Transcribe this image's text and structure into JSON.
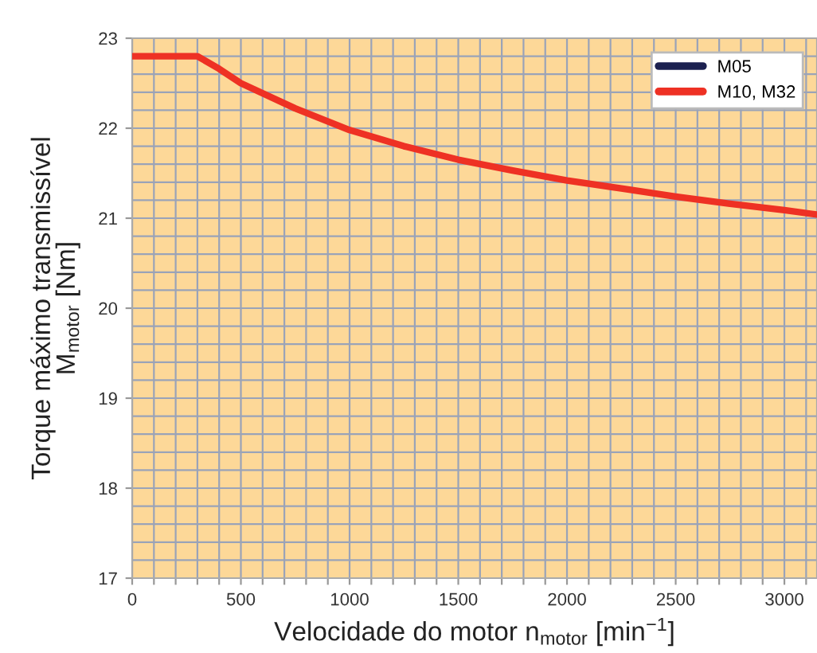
{
  "chart_data": {
    "type": "line",
    "xlabel": "Velocidade do motor n$_{motor}$ [min$^{−1}$]",
    "ylabel": "Torque máximo transmissível\nM$_{motor}$ [Nm]",
    "x": [
      0,
      300,
      400,
      500,
      750,
      1000,
      1250,
      1500,
      1750,
      2000,
      2250,
      2500,
      2750,
      3000,
      3150
    ],
    "series": [
      {
        "name": "M05",
        "color": "#1c2150",
        "values": [
          null,
          null,
          null,
          null,
          null,
          null,
          null,
          null,
          null,
          null,
          null,
          null,
          null,
          null,
          null
        ]
      },
      {
        "name": "M10, M32",
        "color": "#ee3124",
        "values": [
          22.8,
          22.8,
          22.66,
          22.5,
          22.22,
          21.98,
          21.8,
          21.65,
          21.53,
          21.42,
          21.33,
          21.24,
          21.16,
          21.09,
          21.04
        ]
      }
    ],
    "xlim": [
      0,
      3150
    ],
    "xticks": [
      0,
      {
        "value": 100,
        "label": null
      },
      {
        "value": 200,
        "label": null
      },
      {
        "value": 300,
        "label": null
      },
      {
        "value": 400,
        "label": null
      },
      500,
      {
        "value": 600,
        "label": null
      },
      {
        "value": 700,
        "label": null
      },
      {
        "value": 800,
        "label": null
      },
      {
        "value": 900,
        "label": null
      },
      1000,
      {
        "value": 1100,
        "label": null
      },
      {
        "value": 1200,
        "label": null
      },
      {
        "value": 1300,
        "label": null
      },
      {
        "value": 1400,
        "label": null
      },
      1500,
      {
        "value": 1600,
        "label": null
      },
      {
        "value": 1700,
        "label": null
      },
      {
        "value": 1800,
        "label": null
      },
      {
        "value": 1900,
        "label": null
      },
      2000,
      {
        "value": 2100,
        "label": null
      },
      {
        "value": 2200,
        "label": null
      },
      {
        "value": 2300,
        "label": null
      },
      {
        "value": 2400,
        "label": null
      },
      2500,
      {
        "value": 2600,
        "label": null
      },
      {
        "value": 2700,
        "label": null
      },
      {
        "value": 2800,
        "label": null
      },
      {
        "value": 2900,
        "label": null
      },
      3000,
      {
        "value": 3100,
        "label": null
      }
    ],
    "ylim": [
      17,
      23
    ],
    "yticks": [
      17,
      {
        "value": 17.2,
        "label": null
      },
      {
        "value": 17.4,
        "label": null
      },
      {
        "value": 17.6,
        "label": null
      },
      {
        "value": 17.8,
        "label": null
      },
      18,
      {
        "value": 18.2,
        "label": null
      },
      {
        "value": 18.4,
        "label": null
      },
      {
        "value": 18.6,
        "label": null
      },
      {
        "value": 18.8,
        "label": null
      },
      19,
      {
        "value": 19.2,
        "label": null
      },
      {
        "value": 19.4,
        "label": null
      },
      {
        "value": 19.6,
        "label": null
      },
      {
        "value": 19.8,
        "label": null
      },
      20,
      {
        "value": 20.2,
        "label": null
      },
      {
        "value": 20.4,
        "label": null
      },
      {
        "value": 20.6,
        "label": null
      },
      {
        "value": 20.8,
        "label": null
      },
      21,
      {
        "value": 21.2,
        "label": null
      },
      {
        "value": 21.4,
        "label": null
      },
      {
        "value": 21.6,
        "label": null
      },
      {
        "value": 21.8,
        "label": null
      },
      22,
      {
        "value": 22.2,
        "label": null
      },
      {
        "value": 22.4,
        "label": null
      },
      {
        "value": 22.6,
        "label": null
      },
      {
        "value": 22.8,
        "label": null
      },
      23
    ],
    "grid": true,
    "legend": "top right",
    "marker": "none",
    "line_style": "solid"
  }
}
